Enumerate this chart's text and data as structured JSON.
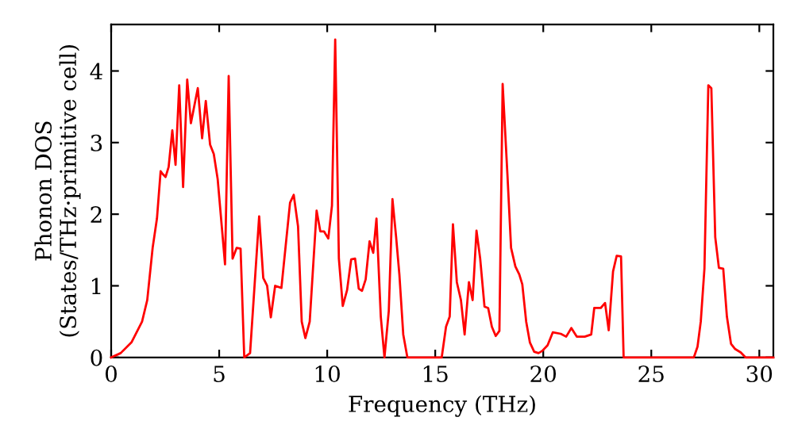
{
  "chart_data": {
    "type": "line",
    "xlabel": "Frequency (THz)",
    "ylabel": "Phonon DOS\n(States/THz·primitive cell)",
    "xlim": [
      0,
      30.65
    ],
    "ylim": [
      0,
      4.65
    ],
    "xticks": [
      0,
      5,
      10,
      15,
      20,
      25,
      30
    ],
    "yticks": [
      0,
      1,
      2,
      3,
      4
    ],
    "grid": false,
    "marker": "none",
    "line_style": "solid",
    "series": [
      {
        "color": "#ff0000",
        "x": [
          0,
          0.44,
          0.94,
          1.43,
          1.67,
          1.92,
          2.12,
          2.29,
          2.36,
          2.52,
          2.66,
          2.83,
          2.98,
          3.15,
          3.33,
          3.52,
          3.69,
          4.01,
          4.21,
          4.38,
          4.58,
          4.75,
          4.93,
          5.12,
          5.27,
          5.44,
          5.62,
          5.81,
          5.99,
          6.16,
          6.43,
          6.85,
          7.04,
          7.22,
          7.39,
          7.59,
          7.88,
          8.28,
          8.45,
          8.65,
          8.82,
          8.99,
          9.19,
          9.51,
          9.68,
          9.85,
          10.05,
          10.22,
          10.37,
          10.54,
          10.72,
          10.92,
          11.11,
          11.29,
          11.46,
          11.61,
          11.78,
          11.96,
          12.13,
          12.28,
          12.48,
          12.65,
          12.85,
          13.02,
          13.19,
          13.34,
          13.52,
          13.71,
          15.3,
          15.5,
          15.67,
          15.82,
          16.0,
          16.19,
          16.36,
          16.56,
          16.73,
          16.91,
          17.08,
          17.28,
          17.45,
          17.62,
          17.8,
          17.97,
          18.12,
          18.34,
          18.51,
          18.71,
          18.89,
          19.03,
          19.21,
          19.38,
          19.58,
          19.78,
          19.95,
          20.2,
          20.44,
          20.81,
          21.06,
          21.3,
          21.55,
          21.92,
          22.22,
          22.36,
          22.66,
          22.86,
          23.03,
          23.23,
          23.4,
          23.6,
          23.72,
          26.97,
          27.14,
          27.29,
          27.46,
          27.64,
          27.78,
          27.96,
          28.13,
          28.33,
          28.5,
          28.69,
          28.87,
          29.14,
          29.36,
          30.65
        ],
        "values": [
          0,
          0.06,
          0.21,
          0.5,
          0.8,
          1.53,
          1.94,
          2.6,
          2.57,
          2.52,
          2.66,
          3.17,
          2.69,
          3.8,
          2.38,
          3.88,
          3.27,
          3.76,
          3.06,
          3.58,
          2.97,
          2.84,
          2.49,
          1.83,
          1.3,
          3.93,
          1.38,
          1.53,
          1.52,
          0,
          0.06,
          1.97,
          1.11,
          1.0,
          0.56,
          1.0,
          0.97,
          2.16,
          2.27,
          1.83,
          0.5,
          0.27,
          0.5,
          2.05,
          1.76,
          1.76,
          1.66,
          2.12,
          4.44,
          1.38,
          0.72,
          0.94,
          1.37,
          1.38,
          0.96,
          0.93,
          1.09,
          1.62,
          1.46,
          1.94,
          0.57,
          0,
          0.65,
          2.21,
          1.68,
          1.16,
          0.32,
          0,
          0,
          0.43,
          0.57,
          1.86,
          1.05,
          0.8,
          0.32,
          1.05,
          0.8,
          1.77,
          1.38,
          0.71,
          0.69,
          0.43,
          0.3,
          0.37,
          3.82,
          2.56,
          1.53,
          1.27,
          1.16,
          1.02,
          0.5,
          0.21,
          0.08,
          0.06,
          0.09,
          0.17,
          0.35,
          0.33,
          0.29,
          0.41,
          0.29,
          0.29,
          0.32,
          0.69,
          0.69,
          0.76,
          0.38,
          1.2,
          1.42,
          1.41,
          0,
          0,
          0.15,
          0.5,
          1.24,
          3.8,
          3.76,
          1.68,
          1.25,
          1.24,
          0.57,
          0.19,
          0.12,
          0.07,
          0,
          0
        ]
      }
    ]
  }
}
